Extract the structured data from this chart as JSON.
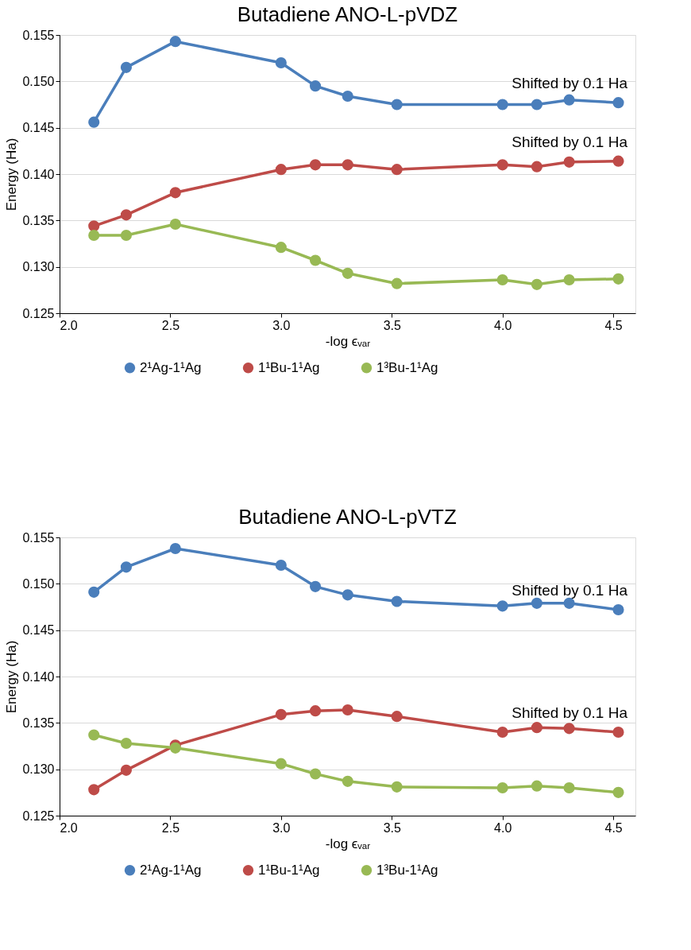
{
  "chart_data": [
    {
      "type": "line",
      "title": "Butadiene ANO-L-pVDZ",
      "xlabel": "-log ϵᵥₐᵣ",
      "ylabel": "Energy (Ha)",
      "x": [
        2.155,
        2.301,
        2.523,
        3.0,
        3.155,
        3.301,
        3.523,
        4.0,
        4.155,
        4.301,
        4.523
      ],
      "series": [
        {
          "name": "2¹Ag-1¹Ag",
          "color": "#4a7ebb",
          "values": [
            0.1456,
            0.1515,
            0.1543,
            0.152,
            0.1495,
            0.1484,
            0.1475,
            0.1475,
            0.1475,
            0.148,
            0.1477
          ]
        },
        {
          "name": "1¹Bu-1¹Ag",
          "color": "#be4b48",
          "values": [
            0.1344,
            0.1356,
            0.138,
            0.1405,
            0.141,
            0.141,
            0.1405,
            0.141,
            0.1408,
            0.1413,
            0.1414
          ]
        },
        {
          "name": "1³Bu-1¹Ag",
          "color": "#98b954",
          "values": [
            0.1334,
            0.1334,
            0.1346,
            0.1321,
            0.1307,
            0.1293,
            0.1282,
            0.1286,
            0.1281,
            0.1286,
            0.1287
          ]
        }
      ],
      "annotations": [
        "Shifted by 0.1 Ha",
        "Shifted by 0.1 Ha"
      ],
      "xlim": [
        2.0,
        4.6
      ],
      "ylim": [
        0.125,
        0.155
      ],
      "xticks": [
        {
          "value": 2.0,
          "label": "2.0"
        },
        2.5,
        {
          "value": 3.0,
          "label": "3.0"
        },
        3.5,
        {
          "value": 4.0,
          "label": "4.0"
        },
        4.5
      ],
      "yticks": [
        {
          "value": 0.125,
          "label": "0.125"
        },
        {
          "value": 0.13,
          "label": "0.130"
        },
        0.135,
        {
          "value": 0.14,
          "label": "0.140"
        },
        0.145,
        {
          "value": 0.15,
          "label": "0.150"
        },
        0.155
      ],
      "grid": "y",
      "legend": "bottom",
      "marker": "circle",
      "line_style": "solid"
    },
    {
      "type": "line",
      "title": "Butadiene ANO-L-pVTZ",
      "xlabel": "-log ϵᵥₐᵣ",
      "ylabel": "Energy (Ha)",
      "x": [
        2.155,
        2.301,
        2.523,
        3.0,
        3.155,
        3.301,
        3.523,
        4.0,
        4.155,
        4.301,
        4.523
      ],
      "series": [
        {
          "name": "2¹Ag-1¹Ag",
          "color": "#4a7ebb",
          "values": [
            0.1491,
            0.1518,
            0.1538,
            0.152,
            0.1497,
            0.1488,
            0.1481,
            0.1476,
            0.1479,
            0.1479,
            0.1472
          ]
        },
        {
          "name": "1¹Bu-1¹Ag",
          "color": "#be4b48",
          "values": [
            0.1278,
            0.1299,
            0.1326,
            0.1359,
            0.1363,
            0.1364,
            0.1357,
            0.134,
            0.1345,
            0.1344,
            0.134
          ]
        },
        {
          "name": "1³Bu-1¹Ag",
          "color": "#98b954",
          "values": [
            0.1337,
            0.1328,
            0.1323,
            0.1306,
            0.1295,
            0.1287,
            0.1281,
            0.128,
            0.1282,
            0.128,
            0.1275
          ]
        }
      ],
      "annotations": [
        "Shifted by 0.1 Ha",
        "Shifted by 0.1 Ha"
      ],
      "xlim": [
        2.0,
        4.6
      ],
      "ylim": [
        0.125,
        0.155
      ],
      "xticks": [
        {
          "value": 2.0,
          "label": "2.0"
        },
        2.5,
        {
          "value": 3.0,
          "label": "3.0"
        },
        3.5,
        {
          "value": 4.0,
          "label": "4.0"
        },
        4.5
      ],
      "yticks": [
        {
          "value": 0.125,
          "label": "0.125"
        },
        {
          "value": 0.13,
          "label": "0.130"
        },
        0.135,
        {
          "value": 0.14,
          "label": "0.140"
        },
        0.145,
        {
          "value": 0.15,
          "label": "0.150"
        },
        0.155
      ],
      "grid": "y",
      "legend": "bottom",
      "marker": "circle",
      "line_style": "solid"
    }
  ]
}
